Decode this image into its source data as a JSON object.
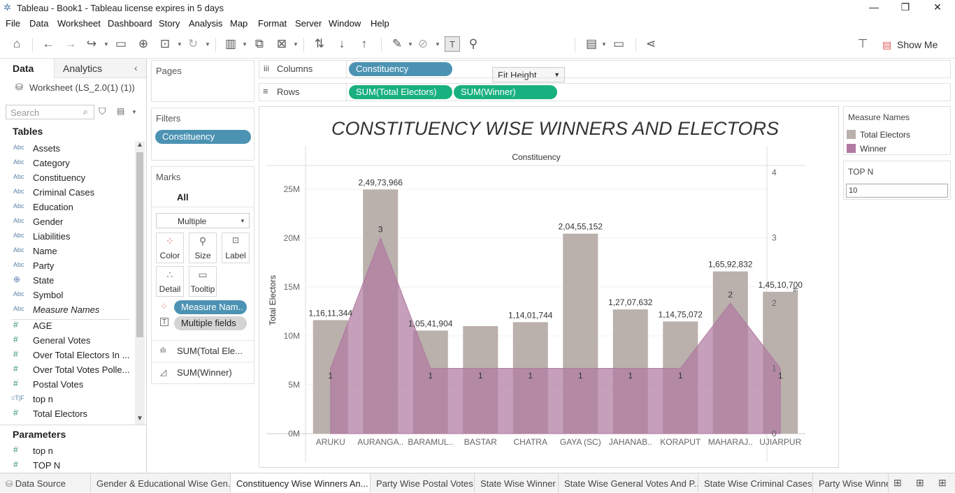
{
  "window": {
    "title": "Tableau - Book1 - Tableau license expires in 5 days"
  },
  "menu": [
    "File",
    "Data",
    "Worksheet",
    "Dashboard",
    "Story",
    "Analysis",
    "Map",
    "Format",
    "Server",
    "Window",
    "Help"
  ],
  "toolbar": {
    "fit": "Fit Height",
    "show_me": "Show Me"
  },
  "left": {
    "tab_data": "Data",
    "tab_analytics": "Analytics",
    "datasource": "Worksheet (LS_2.0(1) (1))",
    "search_placeholder": "Search",
    "tables_header": "Tables",
    "dimensions": [
      "Assets",
      "Category",
      "Constituency",
      "Criminal Cases",
      "Education",
      "Gender",
      "Liabilities",
      "Name",
      "Party",
      "State",
      "Symbol",
      "Measure Names"
    ],
    "dim_icons": [
      "Abc",
      "Abc",
      "Abc",
      "Abc",
      "Abc",
      "Abc",
      "Abc",
      "Abc",
      "Abc",
      "globe",
      "Abc",
      "Abc"
    ],
    "measures": [
      "AGE",
      "General Votes",
      "Over Total Electors  In ...",
      "Over Total Votes Polle...",
      "Postal Votes",
      "top n",
      "Total Electors"
    ],
    "measure_icons": [
      "#",
      "#",
      "#",
      "#",
      "#",
      "=T|F",
      "#"
    ],
    "parameters_header": "Parameters",
    "parameters": [
      "top n",
      "TOP N"
    ]
  },
  "pages_label": "Pages",
  "filters": {
    "label": "Filters",
    "pill": "Constituency"
  },
  "marks": {
    "label": "Marks",
    "all": "All",
    "type": "Multiple",
    "buttons": [
      "Color",
      "Size",
      "Label",
      "Detail",
      "Tooltip"
    ],
    "pill_color": "Measure Nam..",
    "pill_label": "Multiple fields",
    "card1": "SUM(Total Ele...",
    "card2": "SUM(Winner)"
  },
  "shelves": {
    "columns_label": "Columns",
    "rows_label": "Rows",
    "columns_pill": "Constituency",
    "rows_pill1": "SUM(Total Electors)",
    "rows_pill2": "SUM(Winner)"
  },
  "legend": {
    "title": "Measure Names",
    "items": [
      "Total Electors",
      "Winner"
    ],
    "colors": [
      "#bab0ac",
      "#b07aa1"
    ]
  },
  "topn": {
    "label": "TOP N",
    "value": "10"
  },
  "chart_data": {
    "type": "bar",
    "title": "CONSTITUENCY WISE WINNERS AND ELECTORS",
    "header": "Constituency",
    "categories": [
      "ARUKU",
      "AURANGA..",
      "BARAMUL..",
      "BASTAR",
      "CHATRA",
      "GAYA (SC)",
      "JAHANAB..",
      "KORAPUT",
      "MAHARAJ..",
      "UJIARPUR"
    ],
    "series": [
      {
        "name": "Total Electors",
        "type": "bar",
        "axis": "left",
        "values": [
          11611344,
          24973966,
          10541904,
          11000000,
          11401744,
          20455152,
          12707632,
          11475072,
          16592832,
          14510700
        ],
        "labels": [
          "1,16,11,344",
          "2,49,73,966",
          "1,05,41,904",
          "",
          "1,14,01,744",
          "2,04,55,152",
          "1,27,07,632",
          "1,14,75,072",
          "1,65,92,832",
          "1,45,10,700"
        ]
      },
      {
        "name": "Winner",
        "type": "area",
        "axis": "right",
        "values": [
          1,
          3,
          1,
          1,
          1,
          1,
          1,
          1,
          2,
          1
        ],
        "labels": [
          "1",
          "3",
          "1",
          "1",
          "1",
          "1",
          "1",
          "1",
          "2",
          "1"
        ]
      }
    ],
    "ylabel": "Total Electors",
    "y2label": "Winner",
    "yticks": [
      "0M",
      "5M",
      "10M",
      "15M",
      "20M",
      "25M"
    ],
    "y2ticks": [
      "0",
      "1",
      "2",
      "3",
      "4"
    ],
    "ylim": [
      0,
      26000000
    ],
    "y2lim": [
      0,
      4
    ],
    "colors": {
      "bar": "#bab0ac",
      "area": "#b07aa1"
    }
  },
  "tabs": [
    "Data Source",
    "Gender & Educational Wise Gen...",
    "Constituency Wise Winners An...",
    "Party Wise Postal Votes",
    "State Wise Winner",
    "State Wise General Votes And P...",
    "State Wise Criminal Cases",
    "Party Wise Winner"
  ],
  "active_tab": 2
}
